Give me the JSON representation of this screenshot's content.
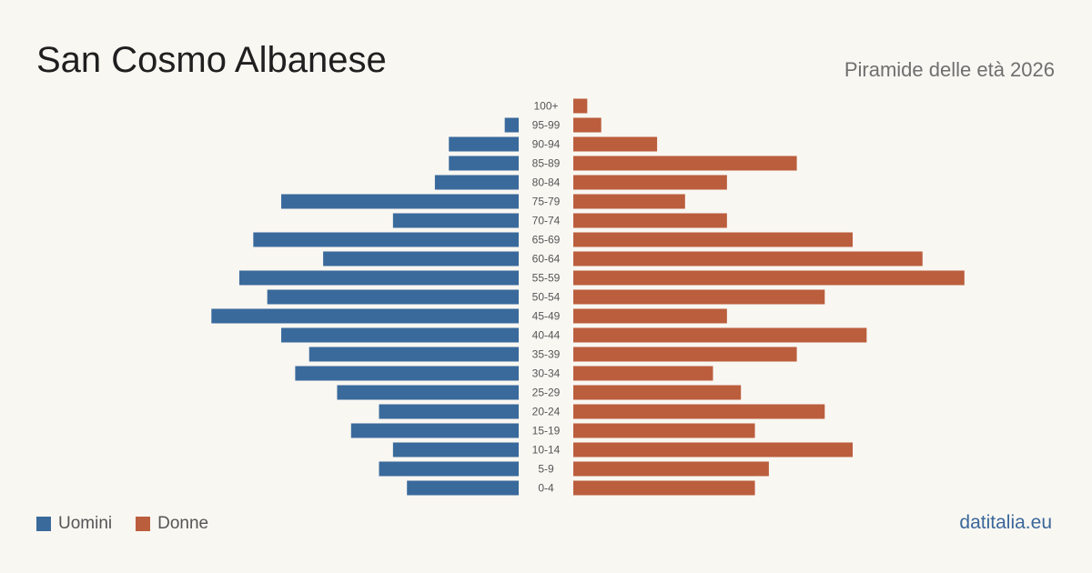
{
  "header": {
    "title": "San Cosmo Albanese",
    "subtitle": "Piramide delle età 2026"
  },
  "colors": {
    "men": "#3a6a9c",
    "women": "#bb5e3d",
    "background": "#f9f7f2"
  },
  "legend": {
    "men_label": "Uomini",
    "women_label": "Donne"
  },
  "footer": {
    "source": "datitalia.eu"
  },
  "chart_data": {
    "type": "bar",
    "orientation": "horizontal-population-pyramid",
    "categories": [
      "100+",
      "95-99",
      "90-94",
      "85-89",
      "80-84",
      "75-79",
      "70-74",
      "65-69",
      "60-64",
      "55-59",
      "50-54",
      "45-49",
      "40-44",
      "35-39",
      "30-34",
      "25-29",
      "20-24",
      "15-19",
      "10-14",
      "5-9",
      "0-4"
    ],
    "series": [
      {
        "name": "Uomini",
        "side": "left",
        "values": [
          0,
          1,
          5,
          5,
          6,
          17,
          9,
          19,
          14,
          20,
          18,
          22,
          17,
          15,
          16,
          13,
          10,
          12,
          9,
          10,
          8
        ]
      },
      {
        "name": "Donne",
        "side": "right",
        "values": [
          1,
          2,
          6,
          16,
          11,
          8,
          11,
          20,
          25,
          28,
          18,
          11,
          21,
          16,
          10,
          12,
          18,
          13,
          20,
          14,
          13
        ]
      }
    ],
    "legend_position": "bottom-left",
    "grid": false
  }
}
